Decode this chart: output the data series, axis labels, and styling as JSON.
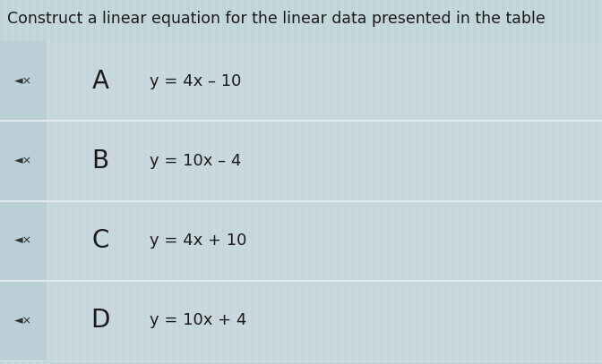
{
  "title": "Construct a linear equation for the linear data presented in the table",
  "title_fontsize": 12.5,
  "title_color": "#1a1a1a",
  "stripe_bg_color": "#c5d8dc",
  "row_bg_light": "#ccd9de",
  "row_bg_dark": "#b8cdd4",
  "separator_color": "#ddeaee",
  "options": [
    {
      "letter": "A",
      "equation": "y = 4x – 10"
    },
    {
      "letter": "B",
      "equation": "y = 10x – 4"
    },
    {
      "letter": "C",
      "equation": "y = 4x + 10"
    },
    {
      "letter": "D",
      "equation": "y = 10x + 4"
    }
  ],
  "icon_color": "#333333",
  "letter_fontsize": 20,
  "equation_fontsize": 13,
  "letter_color": "#1a1a1a",
  "equation_color": "#1a1a1a",
  "top_bg_color": "#c5d8dc",
  "title_bg_color": "#c5d8dc"
}
